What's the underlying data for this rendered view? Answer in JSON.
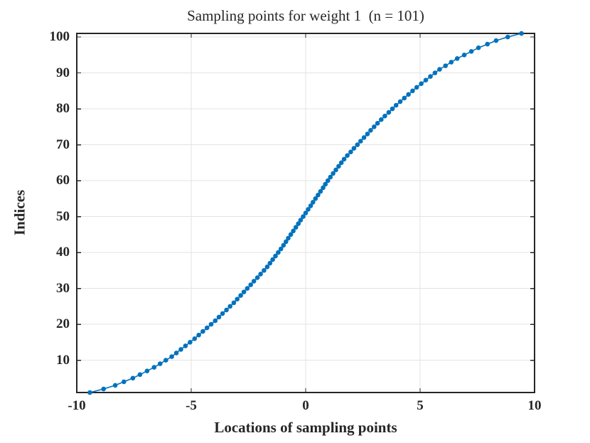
{
  "figure": {
    "title": "Sampling points for weight 1  (n = 101)",
    "xlabel": "Locations of sampling points",
    "ylabel": "Indices"
  },
  "style": {
    "accent": "#0072BD",
    "grid_color": "#e3e3e3",
    "axis_color": "#262626",
    "text_color": "#262626",
    "background": "#ffffff"
  },
  "chart_data": {
    "type": "line",
    "title": "Sampling points for weight 1  (n = 101)",
    "xlabel": "Locations of sampling points",
    "ylabel": "Indices",
    "xlim": [
      -10,
      10
    ],
    "ylim": [
      1,
      101
    ],
    "xticks": [
      -10,
      -5,
      0,
      5,
      10
    ],
    "yticks": [
      10,
      20,
      30,
      40,
      50,
      60,
      70,
      80,
      90,
      100
    ],
    "grid": true,
    "legend": "none",
    "n": 101,
    "marker": "filled-circle",
    "series": [
      {
        "name": "sampling-points",
        "color": "#0072BD",
        "x": [
          -9.43,
          -8.83,
          -8.32,
          -7.94,
          -7.55,
          -7.24,
          -6.93,
          -6.62,
          -6.36,
          -6.11,
          -5.85,
          -5.65,
          -5.45,
          -5.25,
          -5.05,
          -4.85,
          -4.67,
          -4.49,
          -4.31,
          -4.13,
          -3.95,
          -3.79,
          -3.63,
          -3.46,
          -3.3,
          -3.14,
          -2.99,
          -2.84,
          -2.7,
          -2.55,
          -2.4,
          -2.26,
          -2.11,
          -1.97,
          -1.82,
          -1.68,
          -1.56,
          -1.44,
          -1.32,
          -1.2,
          -1.08,
          -0.97,
          -0.86,
          -0.76,
          -0.65,
          -0.54,
          -0.43,
          -0.32,
          -0.22,
          -0.11,
          0.0,
          0.11,
          0.22,
          0.32,
          0.43,
          0.54,
          0.65,
          0.76,
          0.86,
          0.97,
          1.08,
          1.2,
          1.32,
          1.44,
          1.56,
          1.68,
          1.82,
          1.97,
          2.11,
          2.26,
          2.4,
          2.55,
          2.7,
          2.84,
          2.99,
          3.14,
          3.3,
          3.46,
          3.63,
          3.79,
          3.95,
          4.13,
          4.31,
          4.49,
          4.67,
          4.85,
          5.05,
          5.25,
          5.45,
          5.65,
          5.85,
          6.11,
          6.36,
          6.62,
          6.93,
          7.24,
          7.55,
          7.94,
          8.32,
          8.83,
          9.43
        ],
        "y": [
          1,
          2,
          3,
          4,
          5,
          6,
          7,
          8,
          9,
          10,
          11,
          12,
          13,
          14,
          15,
          16,
          17,
          18,
          19,
          20,
          21,
          22,
          23,
          24,
          25,
          26,
          27,
          28,
          29,
          30,
          31,
          32,
          33,
          34,
          35,
          36,
          37,
          38,
          39,
          40,
          41,
          42,
          43,
          44,
          45,
          46,
          47,
          48,
          49,
          50,
          51,
          52,
          53,
          54,
          55,
          56,
          57,
          58,
          59,
          60,
          61,
          62,
          63,
          64,
          65,
          66,
          67,
          68,
          69,
          70,
          71,
          72,
          73,
          74,
          75,
          76,
          77,
          78,
          79,
          80,
          81,
          82,
          83,
          84,
          85,
          86,
          87,
          88,
          89,
          90,
          91,
          92,
          93,
          94,
          95,
          96,
          97,
          98,
          99,
          100,
          101
        ]
      }
    ]
  }
}
